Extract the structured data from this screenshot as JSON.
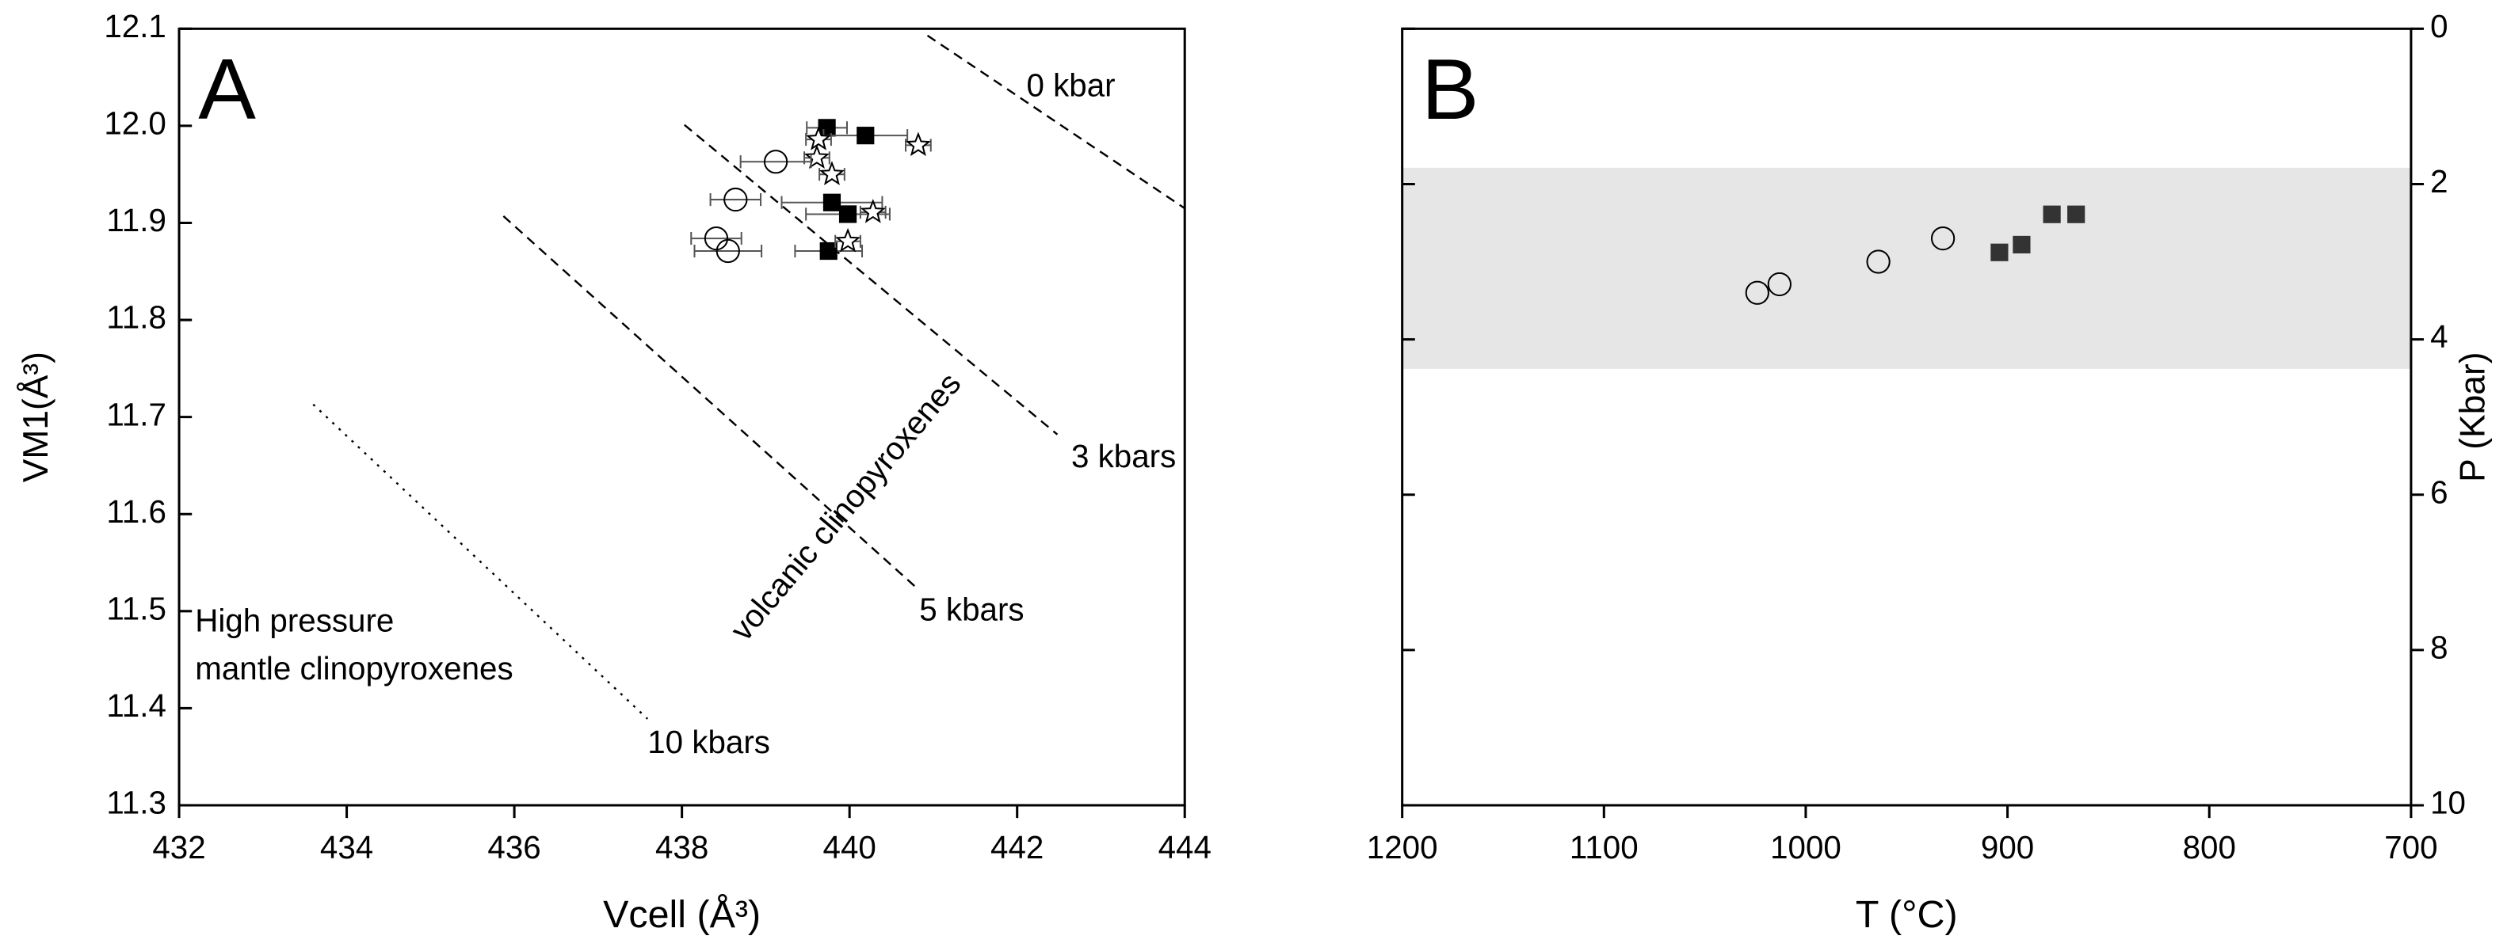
{
  "chart_data": [
    {
      "type": "scatter",
      "label": "A",
      "xlabel": "Vcell (Å³)",
      "ylabel": "VM1(Å³)",
      "xlim": [
        432,
        444
      ],
      "ylim": [
        11.3,
        12.1
      ],
      "xticks": [
        432,
        434,
        436,
        438,
        440,
        442,
        444
      ],
      "yticks": [
        11.3,
        11.4,
        11.5,
        11.6,
        11.7,
        11.8,
        11.9,
        {
          "value": 12,
          "label": "12.0"
        },
        12.1
      ],
      "series": [
        {
          "marker": "square",
          "color": "#000000",
          "x": [
            439.73,
            440.19,
            439.79,
            439.98,
            439.75
          ],
          "y": [
            11.998,
            11.99,
            11.921,
            11.909,
            11.871
          ],
          "xerr": [
            0.24,
            0.5,
            0.6,
            0.5,
            0.4
          ]
        },
        {
          "marker": "star",
          "color": "#000000",
          "x": [
            439.63,
            439.61,
            439.79,
            440.82,
            440.28,
            439.98
          ],
          "y": [
            11.986,
            11.967,
            11.95,
            11.98,
            11.911,
            11.881
          ],
          "xerr": [
            0.15,
            0.15,
            0.15,
            0.15,
            0.15,
            0.15
          ]
        },
        {
          "marker": "circle",
          "color": "#000000",
          "x": [
            439.12,
            438.64,
            438.41,
            438.55
          ],
          "y": [
            11.963,
            11.924,
            11.884,
            11.871
          ],
          "xerr": [
            0.42,
            0.3,
            0.3,
            0.4
          ]
        }
      ],
      "lines": [
        {
          "dash": "dashed",
          "x": [
            440.93,
            444
          ],
          "y": [
            12.093,
            11.915
          ]
        },
        {
          "dash": "dashed",
          "x": [
            438.03,
            442.48
          ],
          "y": [
            12.001,
            11.682
          ]
        },
        {
          "dash": "dashed",
          "x": [
            435.87,
            440.8
          ],
          "y": [
            11.907,
            11.524
          ]
        },
        {
          "dash": "dotted",
          "x": [
            433.6,
            437.59
          ],
          "y": [
            11.713,
            11.389
          ]
        }
      ],
      "annotations": [
        "0 kbar",
        "3 kbars",
        "5 kbars",
        "10 kbars",
        "High pressure",
        "mantle clinopyroxenes",
        "volcanic clinopyroxenes"
      ]
    },
    {
      "type": "scatter",
      "label": "B",
      "xlabel": "T (°C)",
      "ylabel": "P (Kbar)",
      "xlim": [
        1200,
        700
      ],
      "ylim": [
        10,
        0
      ],
      "xticks": [
        1200,
        1100,
        1000,
        900,
        800,
        700
      ],
      "yticks": [
        0,
        2,
        4,
        6,
        8,
        10
      ],
      "band": {
        "ymin": 1.79,
        "ymax": 4.38,
        "color": "#e6e6e6"
      },
      "series": [
        {
          "marker": "circle",
          "color": "#000000",
          "x": [
            1024,
            1013,
            964,
            932
          ],
          "y": [
            3.4,
            3.29,
            3.0,
            2.7
          ]
        },
        {
          "marker": "square",
          "color": "#333333",
          "x": [
            904,
            893,
            878,
            866
          ],
          "y": [
            2.88,
            2.78,
            2.39,
            2.39
          ]
        }
      ]
    }
  ]
}
